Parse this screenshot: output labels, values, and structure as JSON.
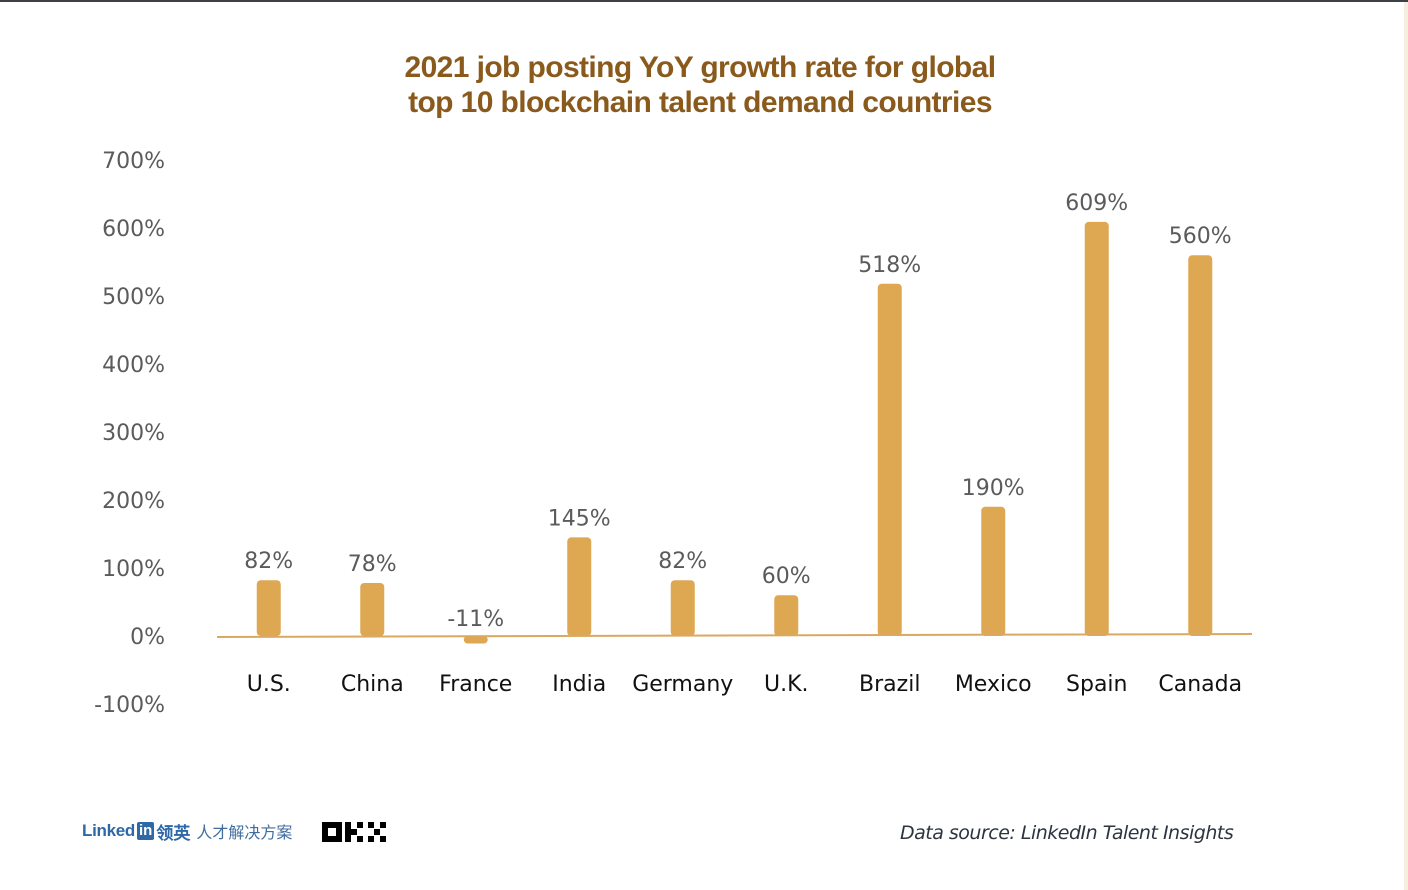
{
  "chart_data": {
    "type": "bar",
    "title": "2021 job posting YoY growth rate for global top 10 blockchain talent demand countries",
    "title_lines": [
      "2021 job posting YoY growth rate for global",
      "top 10 blockchain talent demand countries"
    ],
    "categories": [
      "U.S.",
      "China",
      "France",
      "India",
      "Germany",
      "U.K.",
      "Brazil",
      "Mexico",
      "Spain",
      "Canada"
    ],
    "values": [
      82,
      78,
      -11,
      145,
      82,
      60,
      518,
      190,
      609,
      560
    ],
    "data_labels": [
      "82%",
      "78%",
      "-11%",
      "145%",
      "82%",
      "60%",
      "518%",
      "190%",
      "609%",
      "560%"
    ],
    "xlabel": "",
    "ylabel": "",
    "ylim": [
      -100,
      700
    ],
    "yticks": [
      700,
      600,
      500,
      400,
      300,
      200,
      100,
      0,
      -100
    ],
    "ytick_labels": [
      "700%",
      "600%",
      "500%",
      "400%",
      "300%",
      "200%",
      "100%",
      "0%",
      "-100%"
    ],
    "grid": false,
    "legend": "none",
    "bar_color": "#dea752",
    "axis_color": "#d9a961"
  },
  "footer": {
    "linkedin_word": "Linked",
    "linkedin_box": "in",
    "linkedin_cn": "领英",
    "linkedin_sub": "人才解决方案",
    "okx_logo": "OKX",
    "source": "Data source: LinkedIn Talent Insights"
  }
}
